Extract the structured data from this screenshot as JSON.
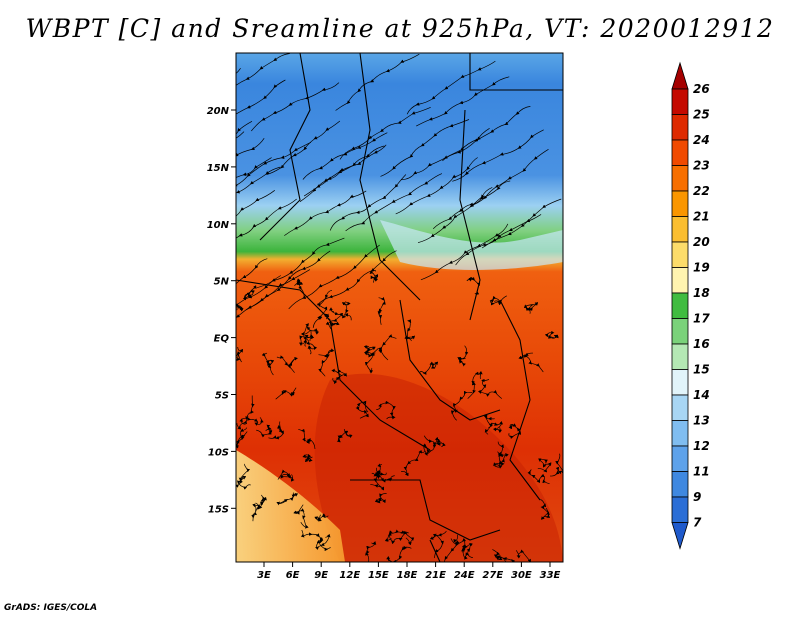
{
  "title": "WBPT [C] and Sreamline at 925hPa, VT: 2020012912",
  "footer": "GrADS: IGES/COLA",
  "lat_labels": [
    "20N",
    "15N",
    "10N",
    "5N",
    "EQ",
    "5S",
    "10S",
    "15S"
  ],
  "lon_labels": [
    "3E",
    "6E",
    "9E",
    "12E",
    "15E",
    "18E",
    "21E",
    "24E",
    "27E",
    "30E",
    "33E"
  ],
  "colorbar": {
    "levels": [
      "26",
      "25",
      "24",
      "23",
      "22",
      "21",
      "20",
      "19",
      "18",
      "17",
      "16",
      "15",
      "14",
      "13",
      "12",
      "11",
      "9",
      "7"
    ],
    "colors": [
      "#a50000",
      "#c40a00",
      "#de2a00",
      "#f04a00",
      "#f76f00",
      "#fa9600",
      "#fbbe30",
      "#fcdc6a",
      "#fff4b0",
      "#40bc40",
      "#7ad27a",
      "#b4e8b4",
      "#e2f4fa",
      "#a8d6f4",
      "#80bdf0",
      "#5ea2ea",
      "#3f88e0",
      "#2b6ed6",
      "#1f5acc"
    ]
  }
}
